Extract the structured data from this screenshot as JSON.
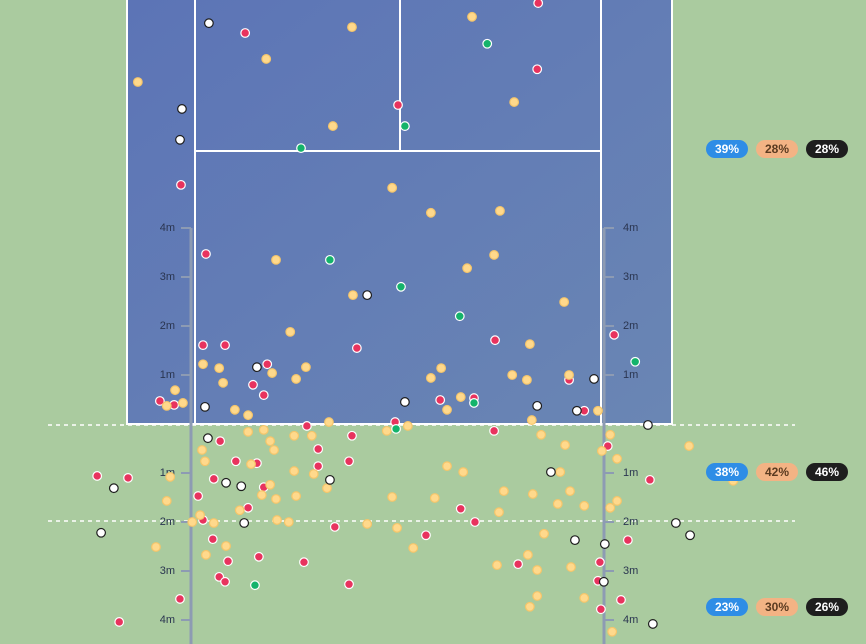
{
  "ruler": [
    "1m",
    "2m",
    "3m",
    "4m"
  ],
  "stat_colors": [
    {
      "fill": "#2e8de6",
      "text": "#ffffff"
    },
    {
      "fill": "#f3b384",
      "text": "#5a3a20"
    },
    {
      "fill": "#1e1e1e",
      "text": "#ffffff"
    }
  ],
  "stats": [
    [
      "39%",
      "28%",
      "28%"
    ],
    [
      "38%",
      "42%",
      "46%"
    ],
    [
      "23%",
      "30%",
      "26%"
    ]
  ],
  "shots": [
    {
      "color": "#e8335e",
      "stroke": "#ffffff",
      "points": [
        [
          2.82,
          8.59
        ],
        [
          -3.16,
          7.98
        ],
        [
          2.8,
          7.24
        ],
        [
          -0.04,
          6.51
        ],
        [
          -4.47,
          4.88
        ],
        [
          -3.96,
          3.47
        ],
        [
          -4.02,
          1.61
        ],
        [
          -3.57,
          1.61
        ],
        [
          -0.88,
          1.55
        ],
        [
          1.94,
          1.71
        ],
        [
          4.37,
          1.82
        ],
        [
          -2.71,
          1.22
        ],
        [
          -3.0,
          0.8
        ],
        [
          -2.78,
          0.59
        ],
        [
          -4.9,
          0.47
        ],
        [
          -4.61,
          0.39
        ],
        [
          0.82,
          0.49
        ],
        [
          1.51,
          0.53
        ],
        [
          3.45,
          0.9
        ],
        [
          3.76,
          0.27
        ],
        [
          -0.1,
          0.04
        ],
        [
          -1.9,
          -0.04
        ],
        [
          -3.67,
          -0.35
        ],
        [
          -0.98,
          -0.24
        ],
        [
          1.92,
          -0.14
        ],
        [
          4.24,
          -0.45
        ],
        [
          -1.67,
          -0.51
        ],
        [
          -3.35,
          -0.76
        ],
        [
          -2.92,
          -0.8
        ],
        [
          -1.67,
          -0.86
        ],
        [
          -1.04,
          -0.76
        ],
        [
          -6.18,
          -1.06
        ],
        [
          -5.55,
          -1.1
        ],
        [
          -3.8,
          -1.12
        ],
        [
          -2.78,
          -1.29
        ],
        [
          -4.12,
          -1.47
        ],
        [
          -3.1,
          -1.71
        ],
        [
          1.24,
          -1.73
        ],
        [
          1.53,
          -2.0
        ],
        [
          -1.33,
          -2.1
        ],
        [
          5.1,
          -1.14
        ],
        [
          -4.02,
          -1.96
        ],
        [
          -3.82,
          -2.35
        ],
        [
          0.53,
          -2.27
        ],
        [
          4.65,
          -2.37
        ],
        [
          -2.88,
          -2.71
        ],
        [
          -3.51,
          -2.8
        ],
        [
          -1.96,
          -2.82
        ],
        [
          2.41,
          -2.86
        ],
        [
          4.08,
          -2.82
        ],
        [
          -3.69,
          -3.12
        ],
        [
          -3.57,
          -3.22
        ],
        [
          -1.04,
          -3.27
        ],
        [
          4.04,
          -3.2
        ],
        [
          -4.49,
          -3.57
        ],
        [
          4.51,
          -3.59
        ],
        [
          4.1,
          -3.78
        ],
        [
          -5.73,
          -4.04
        ]
      ]
    },
    {
      "color": "#ffd98c",
      "stroke": "#f5c56a",
      "points": [
        [
          -5.35,
          6.98
        ],
        [
          -0.98,
          8.1
        ],
        [
          1.47,
          8.31
        ],
        [
          -2.73,
          7.45
        ],
        [
          2.33,
          6.57
        ],
        [
          -1.37,
          6.08
        ],
        [
          -0.16,
          4.82
        ],
        [
          0.63,
          4.31
        ],
        [
          2.04,
          4.35
        ],
        [
          -2.53,
          3.35
        ],
        [
          1.92,
          3.45
        ],
        [
          1.37,
          3.18
        ],
        [
          -0.96,
          2.63
        ],
        [
          3.35,
          2.49
        ],
        [
          -2.24,
          1.88
        ],
        [
          2.65,
          1.63
        ],
        [
          -4.02,
          1.22
        ],
        [
          -3.69,
          1.14
        ],
        [
          -1.92,
          1.16
        ],
        [
          -2.61,
          1.04
        ],
        [
          0.84,
          1.14
        ],
        [
          -3.61,
          0.84
        ],
        [
          -2.12,
          0.92
        ],
        [
          0.63,
          0.94
        ],
        [
          2.29,
          1.0
        ],
        [
          2.59,
          0.9
        ],
        [
          3.45,
          1.0
        ],
        [
          -4.59,
          0.69
        ],
        [
          -4.76,
          0.37
        ],
        [
          -4.43,
          0.43
        ],
        [
          1.24,
          0.55
        ],
        [
          0.96,
          0.29
        ],
        [
          -3.37,
          0.29
        ],
        [
          -3.1,
          0.18
        ],
        [
          4.04,
          0.27
        ],
        [
          -1.45,
          0.04
        ],
        [
          2.69,
          0.08
        ],
        [
          -0.27,
          -0.14
        ],
        [
          0.16,
          -0.04
        ],
        [
          -3.1,
          -0.16
        ],
        [
          -2.78,
          -0.12
        ],
        [
          -2.16,
          -0.24
        ],
        [
          -1.8,
          -0.24
        ],
        [
          2.88,
          -0.22
        ],
        [
          4.29,
          -0.22
        ],
        [
          -2.65,
          -0.35
        ],
        [
          -2.57,
          -0.53
        ],
        [
          3.37,
          -0.43
        ],
        [
          5.9,
          -0.45
        ],
        [
          -4.04,
          -0.53
        ],
        [
          -3.98,
          -0.76
        ],
        [
          -3.04,
          -0.82
        ],
        [
          0.96,
          -0.86
        ],
        [
          1.29,
          -0.98
        ],
        [
          4.12,
          -0.55
        ],
        [
          4.43,
          -0.71
        ],
        [
          -4.69,
          -1.08
        ],
        [
          -2.16,
          -0.96
        ],
        [
          -1.76,
          -1.02
        ],
        [
          3.27,
          -0.98
        ],
        [
          6.8,
          -1.16
        ],
        [
          -2.65,
          -1.24
        ],
        [
          -1.49,
          -1.31
        ],
        [
          2.12,
          -1.37
        ],
        [
          2.71,
          -1.43
        ],
        [
          3.47,
          -1.37
        ],
        [
          -4.76,
          -1.57
        ],
        [
          -2.82,
          -1.45
        ],
        [
          -2.53,
          -1.53
        ],
        [
          -2.12,
          -1.47
        ],
        [
          -0.16,
          -1.49
        ],
        [
          0.71,
          -1.51
        ],
        [
          3.22,
          -1.63
        ],
        [
          3.76,
          -1.67
        ],
        [
          4.43,
          -1.57
        ],
        [
          2.02,
          -1.8
        ],
        [
          4.29,
          -1.71
        ],
        [
          -3.27,
          -1.76
        ],
        [
          -4.08,
          -1.86
        ],
        [
          -4.24,
          -2.0
        ],
        [
          -3.8,
          -2.02
        ],
        [
          -2.51,
          -1.96
        ],
        [
          -2.27,
          -2.0
        ],
        [
          -0.67,
          -2.04
        ],
        [
          -0.06,
          -2.12
        ],
        [
          2.94,
          -2.24
        ],
        [
          -4.98,
          -2.51
        ],
        [
          -3.55,
          -2.49
        ],
        [
          0.27,
          -2.53
        ],
        [
          -3.96,
          -2.67
        ],
        [
          2.61,
          -2.67
        ],
        [
          1.98,
          -2.88
        ],
        [
          2.8,
          -2.98
        ],
        [
          3.49,
          -2.92
        ],
        [
          2.8,
          -3.51
        ],
        [
          2.65,
          -3.73
        ],
        [
          3.76,
          -3.55
        ],
        [
          4.33,
          -4.24
        ]
      ]
    },
    {
      "color": "#14b36b",
      "stroke": "#ffffff",
      "points": [
        [
          1.78,
          7.76
        ],
        [
          0.1,
          6.08
        ],
        [
          -2.02,
          5.63
        ],
        [
          -1.43,
          3.35
        ],
        [
          0.02,
          2.8
        ],
        [
          1.22,
          2.2
        ],
        [
          4.8,
          1.27
        ],
        [
          1.51,
          0.43
        ],
        [
          -0.08,
          -0.1
        ],
        [
          -2.96,
          -3.29
        ]
      ]
    },
    {
      "color": "#ffffff",
      "stroke": "#1e1e1e",
      "points": [
        [
          -3.9,
          8.18
        ],
        [
          -4.45,
          6.43
        ],
        [
          -4.49,
          5.8
        ],
        [
          -0.67,
          2.63
        ],
        [
          -2.92,
          1.16
        ],
        [
          3.96,
          0.92
        ],
        [
          -3.98,
          0.35
        ],
        [
          0.1,
          0.45
        ],
        [
          2.8,
          0.37
        ],
        [
          3.61,
          0.27
        ],
        [
          5.06,
          -0.02
        ],
        [
          -3.92,
          -0.29
        ],
        [
          -1.43,
          -1.14
        ],
        [
          3.08,
          -0.98
        ],
        [
          -3.55,
          -1.2
        ],
        [
          -3.24,
          -1.27
        ],
        [
          -5.84,
          -1.31
        ],
        [
          -3.18,
          -2.02
        ],
        [
          -6.1,
          -2.22
        ],
        [
          5.63,
          -2.02
        ],
        [
          5.92,
          -2.27
        ],
        [
          3.57,
          -2.37
        ],
        [
          4.18,
          -2.45
        ],
        [
          4.16,
          -3.22
        ],
        [
          5.16,
          -4.08
        ]
      ]
    }
  ]
}
